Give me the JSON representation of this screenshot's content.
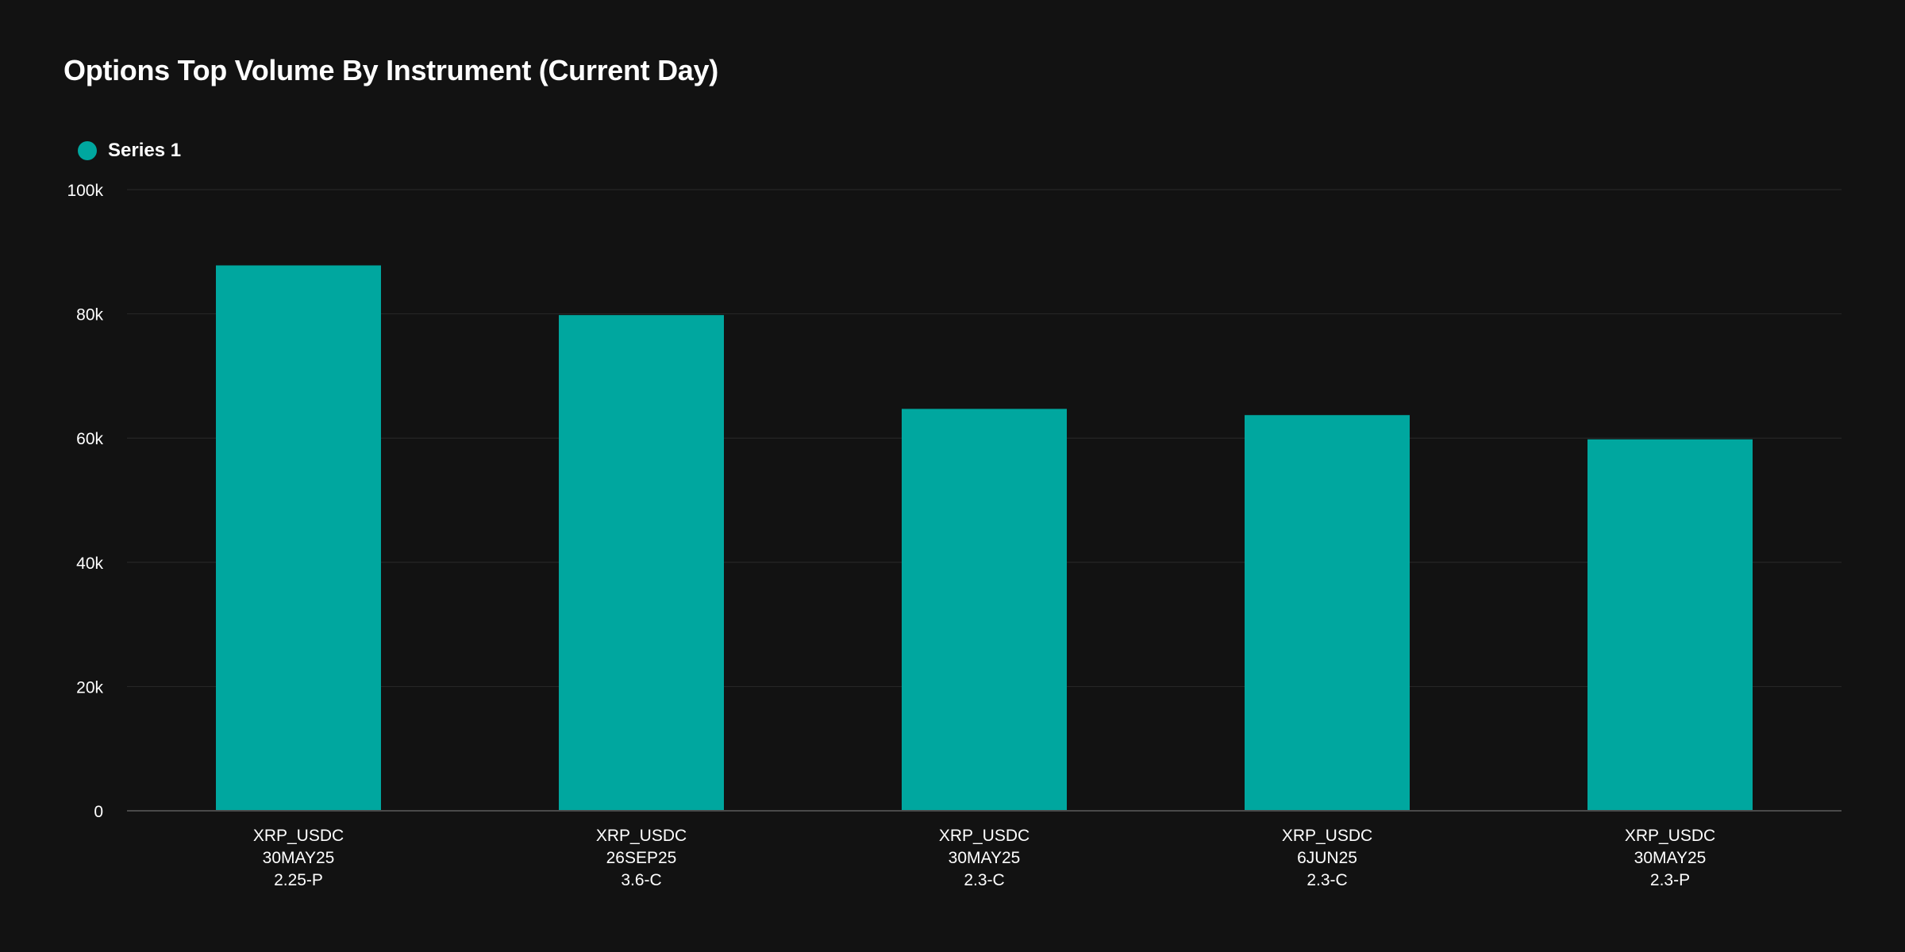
{
  "chart_data": {
    "type": "bar",
    "title": "Options Top Volume By Instrument (Current Day)",
    "xlabel": "",
    "ylabel": "",
    "categories": [
      [
        "XRP_USDC",
        "30MAY25",
        "2.25-P"
      ],
      [
        "XRP_USDC",
        "26SEP25",
        "3.6-C"
      ],
      [
        "XRP_USDC",
        "30MAY25",
        "2.3-C"
      ],
      [
        "XRP_USDC",
        "6JUN25",
        "2.3-C"
      ],
      [
        "XRP_USDC",
        "30MAY25",
        "2.3-P"
      ]
    ],
    "series": [
      {
        "name": "Series 1",
        "color": "#00A79F",
        "values": [
          87800,
          79800,
          64700,
          63700,
          59800
        ]
      }
    ],
    "ylim": [
      0,
      100000
    ],
    "yticks": [
      0,
      20000,
      40000,
      60000,
      80000,
      100000
    ],
    "ytick_labels": [
      "0",
      "20k",
      "40k",
      "60k",
      "80k",
      "100k"
    ],
    "grid": true,
    "legend_position": "top-left",
    "colors": {
      "background": "#121212",
      "grid": "#2a2a2a",
      "axis": "#4a4a4a",
      "text": "#ffffff"
    }
  }
}
